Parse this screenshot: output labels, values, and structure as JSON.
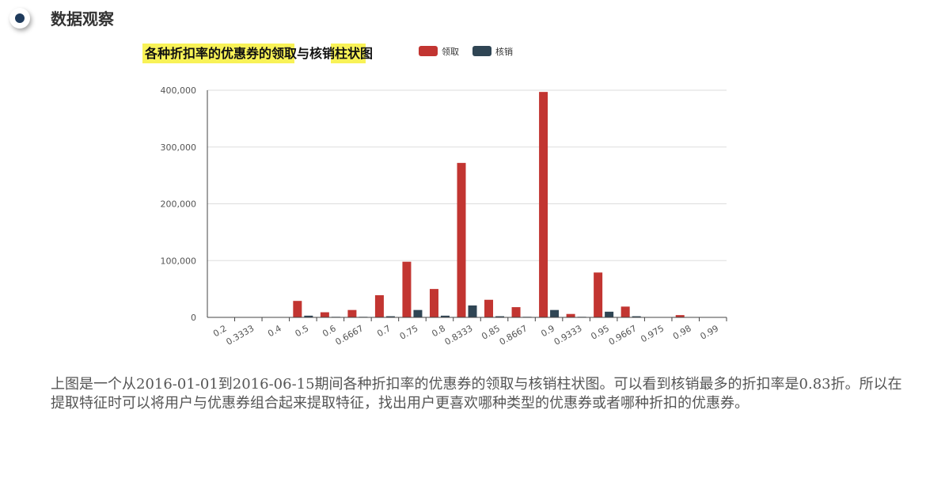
{
  "section": {
    "title": "数据观察"
  },
  "description": "上图是一个从2016-01-01到2016-06-15期间各种折扣率的优惠券的领取与核销柱状图。可以看到核销最多的折扣率是0.83折。所以在提取特征时可以将用户与优惠券组合起来提取特征，找出用户更喜欢哪种类型的优惠券或者哪种折扣的优惠券。",
  "chart_data": {
    "type": "bar",
    "title": "各种折扣率的优惠券的领取与核销柱状图",
    "xlabel": "",
    "ylabel": "",
    "ylim": [
      0,
      400000
    ],
    "yticks": [
      0,
      100000,
      200000,
      300000,
      400000
    ],
    "ytick_labels": [
      "0",
      "100,000",
      "200,000",
      "300,000",
      "400,000"
    ],
    "grid": true,
    "legend_position": "top-right",
    "categories": [
      "0.2",
      "0.3333",
      "0.4",
      "0.5",
      "0.6",
      "0.6667",
      "0.7",
      "0.75",
      "0.8",
      "0.8333",
      "0.85",
      "0.8667",
      "0.9",
      "0.9333",
      "0.95",
      "0.9667",
      "0.975",
      "0.98",
      "0.99"
    ],
    "series": [
      {
        "name": "领取",
        "color": "#c23531",
        "values": [
          500,
          500,
          500,
          29000,
          9000,
          13000,
          39000,
          98000,
          50000,
          272000,
          31000,
          18000,
          397000,
          6000,
          79000,
          19000,
          500,
          4000,
          500
        ]
      },
      {
        "name": "核销",
        "color": "#2f4554",
        "values": [
          0,
          0,
          0,
          3000,
          1000,
          1000,
          2000,
          13000,
          3000,
          21000,
          2000,
          1000,
          13000,
          1000,
          10000,
          2000,
          0,
          500,
          0
        ]
      }
    ]
  }
}
